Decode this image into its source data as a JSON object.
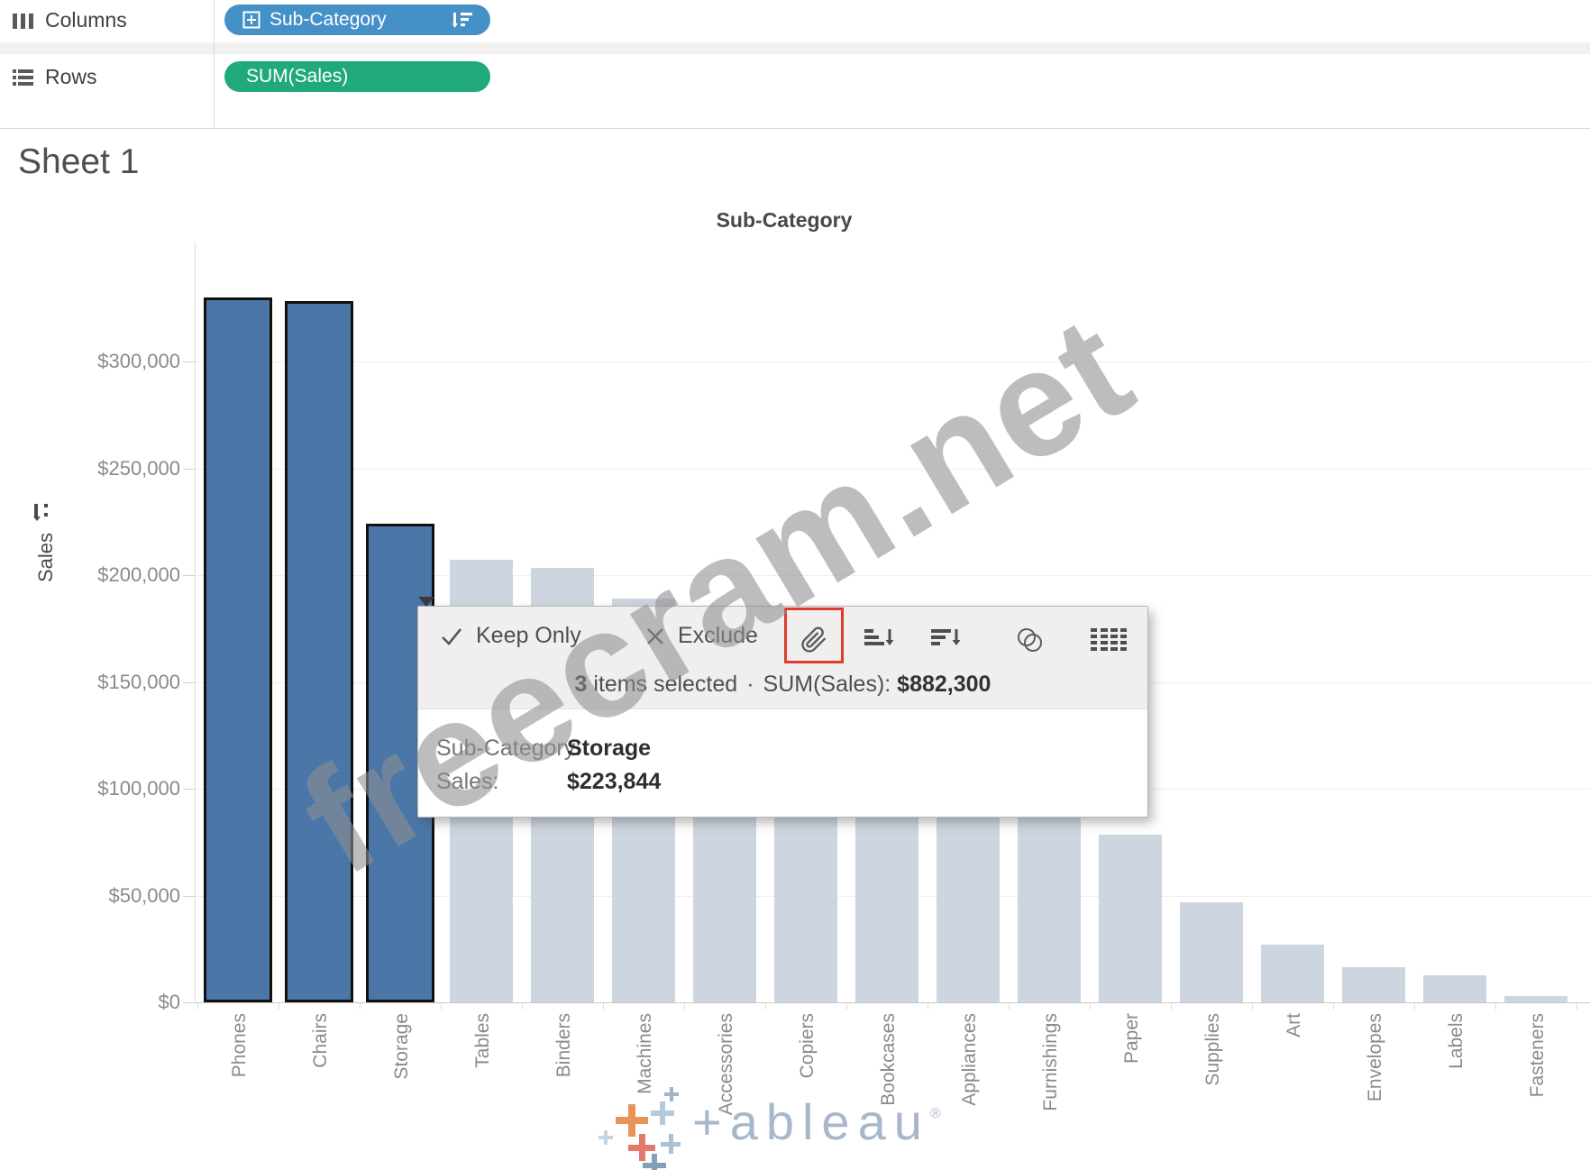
{
  "header": {
    "columns_label": "Columns",
    "rows_label": "Rows",
    "columns_pill": "Sub-Category",
    "rows_pill": "SUM(Sales)",
    "pill_colors": {
      "columns": "#4690c8",
      "rows": "#1fa97d"
    }
  },
  "sheet": {
    "title": "Sheet 1"
  },
  "chart_data": {
    "type": "bar",
    "title": "Sub-Category",
    "xlabel": "Sub-Category",
    "ylabel": "Sales",
    "categories": [
      "Phones",
      "Chairs",
      "Storage",
      "Tables",
      "Binders",
      "Machines",
      "Accessories",
      "Copiers",
      "Bookcases",
      "Appliances",
      "Furnishings",
      "Paper",
      "Supplies",
      "Art",
      "Envelopes",
      "Labels",
      "Fasteners"
    ],
    "values": [
      330007,
      328449,
      223844,
      206966,
      203413,
      189239,
      167380,
      149528,
      114880,
      107532,
      91705,
      78479,
      46674,
      27119,
      16476,
      12486,
      3024
    ],
    "selected_categories": [
      "Phones",
      "Chairs",
      "Storage"
    ],
    "y_ticks": [
      0,
      50000,
      100000,
      150000,
      200000,
      250000,
      300000
    ],
    "ylim": [
      0,
      355000
    ],
    "grid": "horizontal",
    "legend": "none",
    "colors": {
      "selected_bar": "#4b77a8",
      "selected_border": "#111111",
      "unselected_bar": "#cdd6e0"
    }
  },
  "tooltip": {
    "actions": [
      {
        "icon": "check-icon",
        "label": "Keep Only"
      },
      {
        "icon": "x-icon",
        "label": "Exclude"
      }
    ],
    "tool_icons": [
      "paperclip-icon",
      "sort-ascending-icon",
      "sort-descending-icon",
      "group-icon",
      "caret-down-icon",
      "view-data-icon"
    ],
    "highlighted_icon": "paperclip-icon",
    "highlight_color": "#e03a2e",
    "summary": {
      "count": "3",
      "count_text": " items selected",
      "separator": "·",
      "measure": "SUM(Sales):",
      "value": "$882,300"
    },
    "detail_rows": [
      {
        "label": "Sub-Category:",
        "value": "Storage"
      },
      {
        "label": "Sales:",
        "value": "$223,844"
      }
    ]
  },
  "watermark": {
    "text": "freecram.net"
  },
  "brand": {
    "wordmark": "+ableau",
    "registered": "®"
  }
}
